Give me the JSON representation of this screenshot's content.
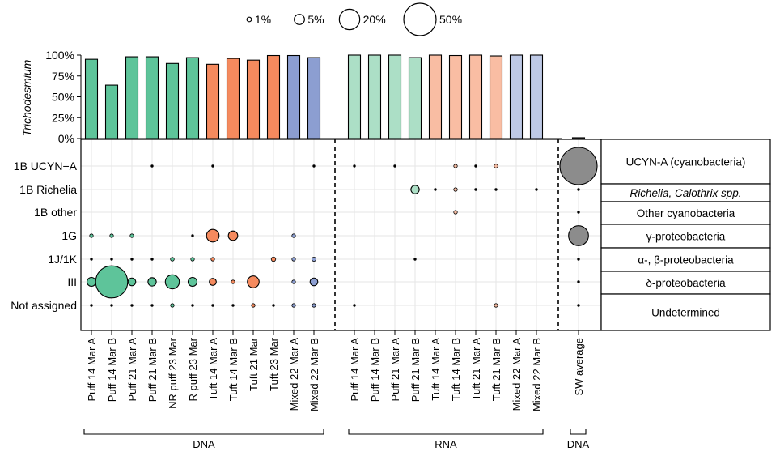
{
  "chart_data": {
    "type": "bar",
    "y_axis_label": "Trichodesmium",
    "y_ticks": [
      "0%",
      "25%",
      "50%",
      "75%",
      "100%"
    ],
    "ylim": [
      0,
      100
    ],
    "colors": {
      "Puff_DNA": "#5ec49a",
      "Tuft_DNA": "#f58a5e",
      "Mixed_DNA": "#8c9ed1",
      "Puff_RNA": "#acdfc6",
      "Tuft_RNA": "#f9bda3",
      "Mixed_RNA": "#bec9e6",
      "SW": "#8c8c8c"
    },
    "samples": [
      {
        "label": "Puff 14 Mar A",
        "group": "DNA",
        "type": "Puff",
        "trichodesmium": 95
      },
      {
        "label": "Puff 14 Mar B",
        "group": "DNA",
        "type": "Puff",
        "trichodesmium": 64
      },
      {
        "label": "Puff 21 Mar A",
        "group": "DNA",
        "type": "Puff",
        "trichodesmium": 98
      },
      {
        "label": "Puff 21 Mar B",
        "group": "DNA",
        "type": "Puff",
        "trichodesmium": 98
      },
      {
        "label": "NR puff 23 Mar",
        "group": "DNA",
        "type": "Puff",
        "trichodesmium": 90
      },
      {
        "label": "R puff 23 Mar",
        "group": "DNA",
        "type": "Puff",
        "trichodesmium": 97
      },
      {
        "label": "Tuft 14 Mar A",
        "group": "DNA",
        "type": "Tuft",
        "trichodesmium": 89
      },
      {
        "label": "Tuft 14 Mar B",
        "group": "DNA",
        "type": "Tuft",
        "trichodesmium": 96
      },
      {
        "label": "Tuft 21 Mar",
        "group": "DNA",
        "type": "Tuft",
        "trichodesmium": 94
      },
      {
        "label": "Tuft 23 Mar",
        "group": "DNA",
        "type": "Tuft",
        "trichodesmium": 99.5
      },
      {
        "label": "Mixed 22 Mar A",
        "group": "DNA",
        "type": "Mixed",
        "trichodesmium": 99.5
      },
      {
        "label": "Mixed 22 Mar B",
        "group": "DNA",
        "type": "Mixed",
        "trichodesmium": 97
      },
      {
        "label": "Puff 14 Mar A",
        "group": "RNA",
        "type": "Puff",
        "trichodesmium": 100
      },
      {
        "label": "Puff 14 Mar B",
        "group": "RNA",
        "type": "Puff",
        "trichodesmium": 100
      },
      {
        "label": "Puff 21 Mar A",
        "group": "RNA",
        "type": "Puff",
        "trichodesmium": 100
      },
      {
        "label": "Puff 21 Mar B",
        "group": "RNA",
        "type": "Puff",
        "trichodesmium": 97
      },
      {
        "label": "Tuft 14 Mar A",
        "group": "RNA",
        "type": "Tuft",
        "trichodesmium": 100
      },
      {
        "label": "Tuft 14 Mar B",
        "group": "RNA",
        "type": "Tuft",
        "trichodesmium": 99.5
      },
      {
        "label": "Tuft 21 Mar A",
        "group": "RNA",
        "type": "Tuft",
        "trichodesmium": 100
      },
      {
        "label": "Tuft 21 Mar B",
        "group": "RNA",
        "type": "Tuft",
        "trichodesmium": 99
      },
      {
        "label": "Mixed 22 Mar A",
        "group": "RNA",
        "type": "Mixed",
        "trichodesmium": 100
      },
      {
        "label": "Mixed 22 Mar B",
        "group": "RNA",
        "type": "Mixed",
        "trichodesmium": 100
      },
      {
        "label": "SW average",
        "group": "SW",
        "type": "SW",
        "trichodesmium": 1
      }
    ],
    "clusters": [
      "1B UCYN−A",
      "1B Richelia",
      "1B other",
      "1G",
      "1J/1K",
      "III",
      "Not assigned"
    ],
    "taxonomy_labels": [
      {
        "text": "UCYN-A (cyanobacteria)",
        "italic": false
      },
      {
        "text": "Richelia, Calothrix spp.",
        "italic": true
      },
      {
        "text": "Other cyanobacteria",
        "italic": false
      },
      {
        "text": "γ-proteobacteria",
        "italic": false
      },
      {
        "text": "α-, β-proteobacteria",
        "italic": false
      },
      {
        "text": "δ-proteobacteria",
        "italic": false
      },
      {
        "text": "Undetermined",
        "italic": false
      }
    ],
    "size_legend": [
      {
        "label": "1%",
        "value": 1
      },
      {
        "label": "5%",
        "value": 5
      },
      {
        "label": "20%",
        "value": 20
      },
      {
        "label": "50%",
        "value": 50
      }
    ],
    "group_labels": [
      "DNA",
      "RNA",
      "DNA"
    ],
    "abundance_percent": [
      [
        0,
        0,
        0,
        0.08,
        0,
        0,
        0.08,
        0,
        0,
        0,
        0,
        0.08,
        0.08,
        0,
        0.08,
        0,
        0,
        0.6,
        0.08,
        0.7,
        0,
        0,
        70
      ],
      [
        0,
        0,
        0,
        0,
        0,
        0,
        0,
        0,
        0,
        0,
        0,
        0,
        0,
        0,
        0,
        3.5,
        0.1,
        0.6,
        0.08,
        0.08,
        0,
        0.08,
        0.08
      ],
      [
        0,
        0,
        0,
        0,
        0,
        0,
        0,
        0,
        0,
        0,
        0,
        0,
        0,
        0,
        0,
        0,
        0,
        0.6,
        0,
        0,
        0,
        0,
        0.08
      ],
      [
        0.5,
        0.4,
        0.4,
        0,
        0,
        0.08,
        8,
        4.5,
        0,
        0,
        0.3,
        0,
        0,
        0,
        0,
        0,
        0,
        0,
        0,
        0,
        0,
        0,
        20
      ],
      [
        0.08,
        0.08,
        0.08,
        0.08,
        0.7,
        0.5,
        0.6,
        0,
        0,
        1,
        0.5,
        0.9,
        0,
        0,
        0,
        0.08,
        0,
        0,
        0,
        0,
        0,
        0,
        0.08
      ],
      [
        4,
        52,
        3,
        3.5,
        10,
        4,
        2.5,
        0.3,
        7,
        0,
        0.3,
        3,
        0,
        0,
        0,
        0,
        0,
        0,
        0,
        0,
        0,
        0,
        0.08
      ],
      [
        0.08,
        0.08,
        0.08,
        0.08,
        0.3,
        0.08,
        0.08,
        0.08,
        0.2,
        0.08,
        0.3,
        0.2,
        0.08,
        0,
        0,
        0,
        0,
        0,
        0,
        0.6,
        0,
        0,
        0.08
      ]
    ]
  }
}
